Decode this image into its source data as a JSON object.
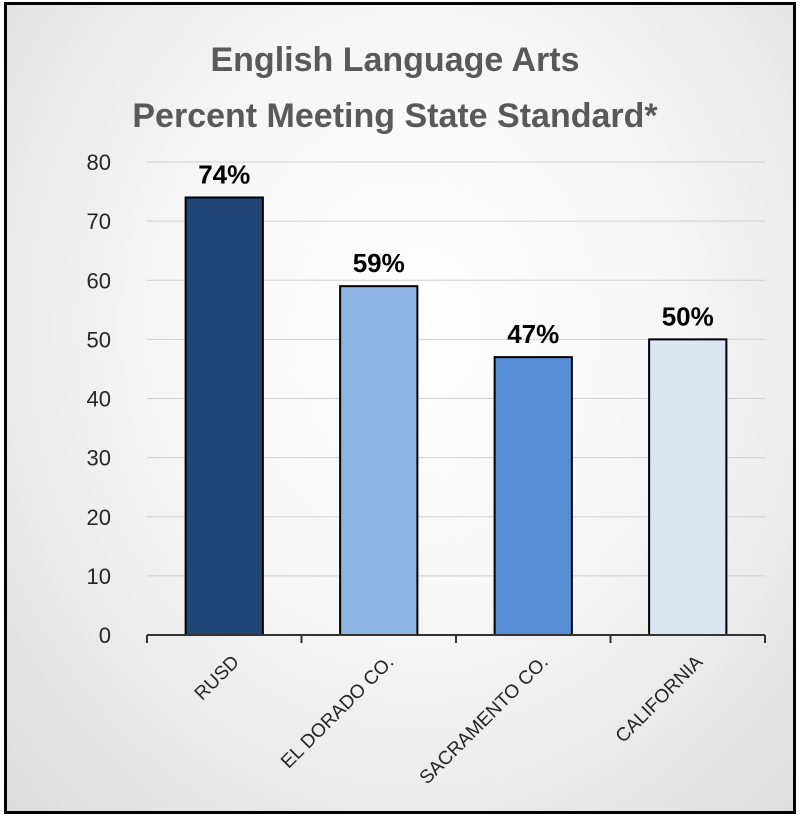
{
  "chart_data": {
    "type": "bar",
    "title_lines": [
      "English Language Arts",
      "Percent Meeting State Standard*"
    ],
    "categories": [
      "RUSD",
      "EL DORADO CO.",
      "SACRAMENTO CO.",
      "CALIFORNIA"
    ],
    "values": [
      74,
      59,
      47,
      50
    ],
    "data_labels": [
      "74%",
      "59%",
      "47%",
      "50%"
    ],
    "bar_colors": [
      "#1f4677",
      "#8eb4e3",
      "#558ed5",
      "#dce6f2"
    ],
    "ylim": [
      0,
      80
    ],
    "yticks": [
      0,
      10,
      20,
      30,
      40,
      50,
      60,
      70,
      80
    ],
    "grid": true,
    "legend": "none"
  }
}
